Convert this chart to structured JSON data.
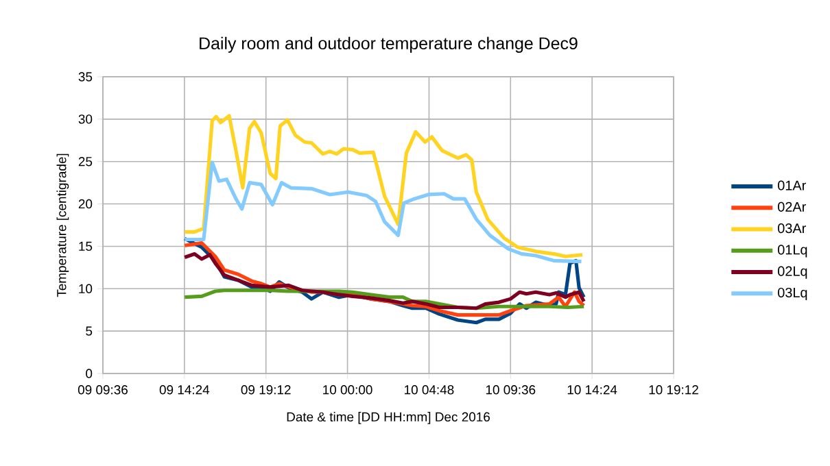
{
  "chart_data": {
    "type": "line",
    "title": "Daily room and outdoor temperature change Dec9",
    "xlabel": "Date & time [DD HH:mm] Dec 2016",
    "ylabel": "Temperature [centigrade]",
    "xlim": [
      "2016-12-09T09:36",
      "2016-12-10T19:12"
    ],
    "ylim": [
      0,
      35
    ],
    "xticks": [
      {
        "value": "2016-12-09T09:36",
        "label": "09 09:36"
      },
      {
        "value": "2016-12-09T14:24",
        "label": "09 14:24"
      },
      {
        "value": "2016-12-09T19:12",
        "label": "09 19:12"
      },
      {
        "value": "2016-12-10T00:00",
        "label": "10 00:00"
      },
      {
        "value": "2016-12-10T04:48",
        "label": "10 04:48"
      },
      {
        "value": "2016-12-10T09:36",
        "label": "10 09:36"
      },
      {
        "value": "2016-12-10T14:24",
        "label": "10 14:24"
      },
      {
        "value": "2016-12-10T19:12",
        "label": "10 19:12"
      }
    ],
    "yticks": [
      0,
      5,
      10,
      15,
      20,
      25,
      30,
      35
    ],
    "grid": true,
    "legend": "right",
    "marker": "none",
    "line_style": "solid",
    "series": [
      {
        "name": "01Ar",
        "color": "#004586",
        "x": [
          "2016-12-09T14:25",
          "2016-12-09T15:25",
          "2016-12-09T16:13",
          "2016-12-09T16:45",
          "2016-12-09T17:34",
          "2016-12-09T18:22",
          "2016-12-09T18:55",
          "2016-12-09T19:27",
          "2016-12-09T19:59",
          "2016-12-09T20:32",
          "2016-12-09T21:20",
          "2016-12-09T21:53",
          "2016-12-09T22:33",
          "2016-12-09T23:30",
          "2016-12-10T00:18",
          "2016-12-10T01:23",
          "2016-12-10T02:28",
          "2016-12-10T03:16",
          "2016-12-10T03:49",
          "2016-12-10T04:37",
          "2016-12-10T05:25",
          "2016-12-10T06:30",
          "2016-12-10T07:35",
          "2016-12-10T08:07",
          "2016-12-10T08:55",
          "2016-12-10T09:36",
          "2016-12-10T10:08",
          "2016-12-10T10:32",
          "2016-12-10T11:05",
          "2016-12-10T11:53",
          "2016-12-10T12:17",
          "2016-12-10T12:26",
          "2016-12-10T12:50",
          "2016-12-10T13:06",
          "2016-12-10T13:27",
          "2016-12-10T13:38",
          "2016-12-10T13:55"
        ],
        "values": [
          15.9,
          14.9,
          13.3,
          11.4,
          11.0,
          10.2,
          10.2,
          9.7,
          10.8,
          10.1,
          9.6,
          8.8,
          9.6,
          9.0,
          9.3,
          8.8,
          8.5,
          8.0,
          7.7,
          7.7,
          7.0,
          6.3,
          6.0,
          6.4,
          6.4,
          7.1,
          8.2,
          7.7,
          8.4,
          8.0,
          8.2,
          9.6,
          9.3,
          13.0,
          13.3,
          10.1,
          9.0
        ]
      },
      {
        "name": "02Ar",
        "color": "#ff420e",
        "x": [
          "2016-12-09T14:25",
          "2016-12-09T15:25",
          "2016-12-09T16:13",
          "2016-12-09T16:45",
          "2016-12-09T17:34",
          "2016-12-09T18:22",
          "2016-12-09T18:55",
          "2016-12-09T19:27",
          "2016-12-09T19:59",
          "2016-12-09T20:32",
          "2016-12-09T21:20",
          "2016-12-09T21:53",
          "2016-12-09T22:33",
          "2016-12-09T23:30",
          "2016-12-10T00:18",
          "2016-12-10T01:23",
          "2016-12-10T02:28",
          "2016-12-10T03:16",
          "2016-12-10T03:49",
          "2016-12-10T04:37",
          "2016-12-10T05:25",
          "2016-12-10T06:30",
          "2016-12-10T07:35",
          "2016-12-10T08:55",
          "2016-12-10T09:36",
          "2016-12-10T10:32",
          "2016-12-10T11:53",
          "2016-12-10T12:26",
          "2016-12-10T12:50",
          "2016-12-10T13:22",
          "2016-12-10T13:38",
          "2016-12-10T13:55"
        ],
        "values": [
          15.1,
          15.4,
          13.8,
          12.2,
          11.7,
          10.9,
          10.6,
          10.2,
          10.6,
          10.2,
          9.8,
          9.6,
          9.6,
          9.3,
          9.3,
          8.8,
          8.5,
          8.2,
          8.0,
          7.9,
          7.4,
          6.9,
          6.9,
          6.9,
          7.4,
          8.0,
          8.2,
          9.0,
          7.9,
          9.6,
          8.5,
          8.0
        ]
      },
      {
        "name": "03Ar",
        "color": "#ffd320",
        "x": [
          "2016-12-09T14:25",
          "2016-12-09T15:00",
          "2016-12-09T15:32",
          "2016-12-09T16:02",
          "2016-12-09T16:16",
          "2016-12-09T16:32",
          "2016-12-09T17:02",
          "2016-12-09T17:26",
          "2016-12-09T17:50",
          "2016-12-09T18:14",
          "2016-12-09T18:31",
          "2016-12-09T18:55",
          "2016-12-09T19:27",
          "2016-12-09T19:47",
          "2016-12-09T20:02",
          "2016-12-09T20:28",
          "2016-12-09T20:56",
          "2016-12-09T21:29",
          "2016-12-09T21:53",
          "2016-12-09T22:33",
          "2016-12-09T22:58",
          "2016-12-09T23:22",
          "2016-12-09T23:46",
          "2016-12-10T00:18",
          "2016-12-10T00:43",
          "2016-12-10T01:31",
          "2016-12-10T01:47",
          "2016-12-10T02:11",
          "2016-12-10T02:59",
          "2016-12-10T03:28",
          "2016-12-10T04:01",
          "2016-12-10T04:34",
          "2016-12-10T04:58",
          "2016-12-10T05:34",
          "2016-12-10T06:30",
          "2016-12-10T06:59",
          "2016-12-10T07:19",
          "2016-12-10T07:35",
          "2016-12-10T08:15",
          "2016-12-10T09:12",
          "2016-12-10T10:01",
          "2016-12-10T11:05",
          "2016-12-10T12:10",
          "2016-12-10T12:50",
          "2016-12-10T13:50"
        ],
        "values": [
          16.7,
          16.7,
          17.1,
          29.8,
          30.3,
          29.6,
          30.4,
          26.3,
          21.9,
          28.9,
          29.7,
          28.4,
          23.6,
          23.0,
          29.2,
          29.9,
          28.1,
          27.3,
          27.2,
          25.9,
          26.2,
          25.9,
          26.5,
          26.4,
          26.0,
          26.1,
          24.1,
          20.9,
          17.6,
          26.0,
          28.5,
          27.3,
          27.9,
          26.3,
          25.4,
          25.8,
          25.2,
          21.4,
          18.2,
          16.0,
          14.9,
          14.4,
          14.1,
          13.8,
          14.0
        ]
      },
      {
        "name": "01Lq",
        "color": "#579d1c",
        "x": [
          "2016-12-09T14:25",
          "2016-12-09T15:25",
          "2016-12-09T16:13",
          "2016-12-09T16:45",
          "2016-12-09T17:34",
          "2016-12-09T18:22",
          "2016-12-09T19:27",
          "2016-12-09T20:32",
          "2016-12-09T21:53",
          "2016-12-09T23:30",
          "2016-12-10T00:18",
          "2016-12-10T01:23",
          "2016-12-10T02:28",
          "2016-12-10T03:16",
          "2016-12-10T03:49",
          "2016-12-10T04:37",
          "2016-12-10T05:25",
          "2016-12-10T06:30",
          "2016-12-10T07:35",
          "2016-12-10T08:55",
          "2016-12-10T10:32",
          "2016-12-10T11:53",
          "2016-12-10T12:58",
          "2016-12-10T13:55"
        ],
        "values": [
          9.0,
          9.1,
          9.7,
          9.8,
          9.8,
          9.8,
          9.8,
          9.7,
          9.7,
          9.7,
          9.6,
          9.3,
          9.0,
          9.0,
          8.5,
          8.5,
          8.2,
          7.8,
          7.7,
          7.9,
          7.9,
          7.9,
          7.8,
          7.9
        ]
      },
      {
        "name": "02Lq",
        "color": "#7e0021",
        "x": [
          "2016-12-09T14:25",
          "2016-12-09T15:00",
          "2016-12-09T15:25",
          "2016-12-09T15:54",
          "2016-12-09T16:13",
          "2016-12-09T16:45",
          "2016-12-09T17:34",
          "2016-12-09T18:22",
          "2016-12-09T19:27",
          "2016-12-09T20:32",
          "2016-12-09T21:20",
          "2016-12-09T22:33",
          "2016-12-09T23:30",
          "2016-12-10T00:18",
          "2016-12-10T01:23",
          "2016-12-10T02:28",
          "2016-12-10T03:16",
          "2016-12-10T03:49",
          "2016-12-10T04:37",
          "2016-12-10T05:25",
          "2016-12-10T06:30",
          "2016-12-10T07:35",
          "2016-12-10T08:07",
          "2016-12-10T08:55",
          "2016-12-10T09:36",
          "2016-12-10T10:08",
          "2016-12-10T10:32",
          "2016-12-10T11:05",
          "2016-12-10T11:53",
          "2016-12-10T12:17",
          "2016-12-10T12:50",
          "2016-12-10T13:06",
          "2016-12-10T13:38",
          "2016-12-10T13:55"
        ],
        "values": [
          13.7,
          14.1,
          13.5,
          14.0,
          13.0,
          11.6,
          11.0,
          10.4,
          10.2,
          10.4,
          9.8,
          9.6,
          9.3,
          9.1,
          8.9,
          8.6,
          8.3,
          8.5,
          8.2,
          7.8,
          7.8,
          7.7,
          8.2,
          8.4,
          8.8,
          9.6,
          9.4,
          9.6,
          9.3,
          9.5,
          9.0,
          9.3,
          9.6,
          8.5
        ]
      },
      {
        "name": "03Lq",
        "color": "#83caff",
        "x": [
          "2016-12-09T14:25",
          "2016-12-09T15:32",
          "2016-12-09T16:02",
          "2016-12-09T16:26",
          "2016-12-09T16:53",
          "2016-12-09T17:26",
          "2016-12-09T17:47",
          "2016-12-09T18:14",
          "2016-12-09T18:55",
          "2016-12-09T19:35",
          "2016-12-09T20:07",
          "2016-12-09T20:40",
          "2016-12-09T21:53",
          "2016-12-09T22:58",
          "2016-12-10T00:02",
          "2016-12-10T01:07",
          "2016-12-10T01:39",
          "2016-12-10T02:11",
          "2016-12-10T02:59",
          "2016-12-10T03:19",
          "2016-12-10T03:56",
          "2016-12-10T04:45",
          "2016-12-10T05:41",
          "2016-12-10T06:14",
          "2016-12-10T06:54",
          "2016-12-10T07:35",
          "2016-12-10T08:23",
          "2016-12-10T09:28",
          "2016-12-10T10:16",
          "2016-12-10T11:05",
          "2016-12-10T12:10",
          "2016-12-10T13:46"
        ],
        "values": [
          15.8,
          15.8,
          24.9,
          22.7,
          22.9,
          20.6,
          19.4,
          22.5,
          22.3,
          19.9,
          22.5,
          21.9,
          21.8,
          21.1,
          21.4,
          21.0,
          20.3,
          17.9,
          16.3,
          20.1,
          20.6,
          21.1,
          21.2,
          20.6,
          20.6,
          18.2,
          16.3,
          14.7,
          14.1,
          13.9,
          13.3,
          13.2
        ]
      }
    ]
  }
}
